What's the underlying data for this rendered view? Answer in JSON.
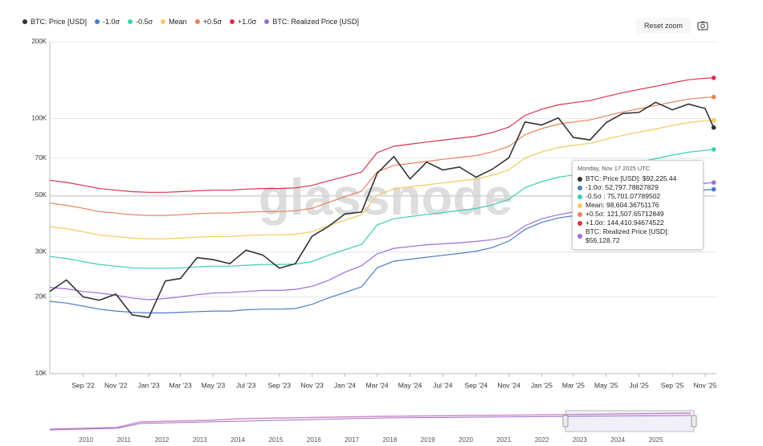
{
  "chart_data": {
    "type": "line",
    "log_scale": true,
    "grid": true,
    "legend": "top-left",
    "watermark": "glassnode",
    "reset_zoom": "Reset zoom",
    "x": [
      "2022-07",
      "2022-08",
      "2022-09",
      "2022-10",
      "2022-11",
      "2022-12",
      "2023-01",
      "2023-02",
      "2023-03",
      "2023-04",
      "2023-05",
      "2023-06",
      "2023-07",
      "2023-08",
      "2023-09",
      "2023-10",
      "2023-11",
      "2023-12",
      "2024-01",
      "2024-02",
      "2024-03",
      "2024-04",
      "2024-05",
      "2024-06",
      "2024-07",
      "2024-08",
      "2024-09",
      "2024-10",
      "2024-11",
      "2024-12",
      "2025-01",
      "2025-02",
      "2025-03",
      "2025-04",
      "2025-05",
      "2025-06",
      "2025-07",
      "2025-08",
      "2025-09",
      "2025-10",
      "2025-11",
      "2025-11-17"
    ],
    "xlim": [
      "2022-07",
      "2025-12"
    ],
    "xticks": [
      {
        "value": "2022-09",
        "label": "Sep '22"
      },
      {
        "value": "2022-11",
        "label": "Nov '22"
      },
      {
        "value": "2023-01",
        "label": "Jan '23"
      },
      {
        "value": "2023-03",
        "label": "Mar '23"
      },
      {
        "value": "2023-05",
        "label": "May '23"
      },
      {
        "value": "2023-07",
        "label": "Jul '23"
      },
      {
        "value": "2023-09",
        "label": "Sep '23"
      },
      {
        "value": "2023-11",
        "label": "Nov '23"
      },
      {
        "value": "2024-01",
        "label": "Jan '24"
      },
      {
        "value": "2024-03",
        "label": "Mar '24"
      },
      {
        "value": "2024-05",
        "label": "May '24"
      },
      {
        "value": "2024-07",
        "label": "Jul '24"
      },
      {
        "value": "2024-09",
        "label": "Sep '24"
      },
      {
        "value": "2024-11",
        "label": "Nov '24"
      },
      {
        "value": "2025-01",
        "label": "Jan '25"
      },
      {
        "value": "2025-03",
        "label": "Mar '25"
      },
      {
        "value": "2025-05",
        "label": "May '25"
      },
      {
        "value": "2025-07",
        "label": "Jul '25"
      },
      {
        "value": "2025-09",
        "label": "Sep '25"
      },
      {
        "value": "2025-11",
        "label": "Nov '25"
      }
    ],
    "ylim": [
      10000,
      200000
    ],
    "yticks": [
      {
        "value": 10000,
        "label": "10K"
      },
      {
        "value": 20000,
        "label": "20K"
      },
      {
        "value": 30000,
        "label": "30K"
      },
      {
        "value": 50000,
        "label": "50K"
      },
      {
        "value": 70000,
        "label": "70K"
      },
      {
        "value": 100000,
        "label": "100K"
      },
      {
        "value": 200000,
        "label": "200K"
      }
    ],
    "series": [
      {
        "name": "BTC: Price [USD]",
        "color": "#333333",
        "values": [
          21000,
          23300,
          20000,
          19400,
          20500,
          17000,
          16600,
          23100,
          23600,
          28500,
          28000,
          27000,
          30500,
          29200,
          25900,
          27000,
          34600,
          37700,
          42300,
          43000,
          61000,
          71000,
          58000,
          67500,
          62900,
          64600,
          58900,
          63300,
          70200,
          97000,
          94400,
          100600,
          84300,
          82500,
          96500,
          104700,
          105700,
          115800,
          108200,
          114000,
          109500,
          92225.44
        ]
      },
      {
        "name": "-1.0σ",
        "color": "#4a7fc1",
        "values": [
          19230,
          18900,
          18400,
          17900,
          17600,
          17400,
          17300,
          17300,
          17400,
          17500,
          17600,
          17600,
          17800,
          17900,
          17900,
          18000,
          18700,
          19800,
          20800,
          21900,
          26000,
          27600,
          28100,
          28600,
          29100,
          29600,
          30200,
          31200,
          33100,
          36800,
          39200,
          40800,
          41600,
          42400,
          44000,
          45600,
          46900,
          48200,
          49800,
          51100,
          52500,
          52797.78827829
        ]
      },
      {
        "name": "-0.5σ",
        "color": "#3ecfb2",
        "values": [
          28800,
          28300,
          27500,
          26800,
          26400,
          26000,
          25900,
          25900,
          26000,
          26200,
          26400,
          26400,
          26600,
          26800,
          26800,
          26900,
          27500,
          29100,
          30600,
          32100,
          38300,
          40500,
          41300,
          42100,
          42800,
          43600,
          44400,
          45900,
          48200,
          53600,
          56600,
          58900,
          60100,
          61200,
          63500,
          65800,
          67700,
          69600,
          71900,
          73800,
          75000,
          75701.07789502
        ]
      },
      {
        "name": "Mean",
        "color": "#f2cc5e",
        "values": [
          37700,
          37000,
          36000,
          35000,
          34500,
          34000,
          33800,
          33800,
          34000,
          34300,
          34500,
          34500,
          34800,
          35000,
          35000,
          35200,
          36000,
          38000,
          40000,
          42000,
          50000,
          53000,
          54000,
          55000,
          56000,
          57000,
          58000,
          60000,
          63000,
          70000,
          74000,
          77000,
          78500,
          80000,
          83000,
          86000,
          88500,
          91000,
          94000,
          96500,
          98000,
          98604.36751176
        ]
      },
      {
        "name": "+0.5σ",
        "color": "#e8825a",
        "values": [
          46600,
          45700,
          44500,
          43200,
          42600,
          42000,
          41700,
          41700,
          42000,
          42400,
          42600,
          42600,
          43000,
          43200,
          43200,
          43500,
          44500,
          46900,
          49400,
          51900,
          61800,
          65500,
          66700,
          67900,
          69200,
          70400,
          71600,
          74100,
          77800,
          86500,
          91400,
          95100,
          97000,
          98800,
          102500,
          106200,
          109300,
          112400,
          116100,
          119200,
          121000,
          121507.65712849
        ]
      },
      {
        "name": "+1.0σ",
        "color": "#d9334f",
        "values": [
          57300,
          56200,
          54700,
          53200,
          52400,
          51700,
          51400,
          51400,
          51700,
          52100,
          52400,
          52400,
          52900,
          53200,
          53200,
          53500,
          54700,
          57000,
          59200,
          61700,
          73500,
          77900,
          79400,
          80900,
          82300,
          83800,
          85300,
          88200,
          92600,
          102900,
          108800,
          113200,
          115400,
          117600,
          122000,
          126400,
          130100,
          133800,
          138200,
          141900,
          144000,
          144410.94674522
        ]
      },
      {
        "name": "BTC: Realized Price [USD]",
        "color": "#9b6fd6",
        "values": [
          21800,
          21500,
          21000,
          20700,
          20300,
          19800,
          19500,
          19700,
          20000,
          20400,
          20700,
          20800,
          21000,
          21200,
          21200,
          21400,
          22000,
          23200,
          25000,
          26500,
          29500,
          31000,
          31500,
          32000,
          32300,
          32600,
          33000,
          33500,
          34500,
          38000,
          40500,
          42000,
          43000,
          44000,
          45500,
          47000,
          48500,
          50500,
          52500,
          54500,
          55800,
          56128.72
        ]
      }
    ],
    "tooltip": {
      "date": "Monday, Nov 17 2025 UTC",
      "rows": [
        "BTC: Price [USD]: $92,225.44",
        "-1.0σ: 52,797.78827829",
        "-0.5σ : 75,701.07789502",
        "Mean: 98,604.36751176",
        "+0.5σ: 121,507.65712849",
        "+1.0σ: 144,410.94674522",
        "BTC: Realized Price [USD]: $56,128.72"
      ]
    },
    "navigator": {
      "years": [
        2010,
        2011,
        2012,
        2013,
        2014,
        2015,
        2016,
        2017,
        2018,
        2019,
        2020,
        2021,
        2022,
        2023,
        2024,
        2025
      ]
    }
  }
}
